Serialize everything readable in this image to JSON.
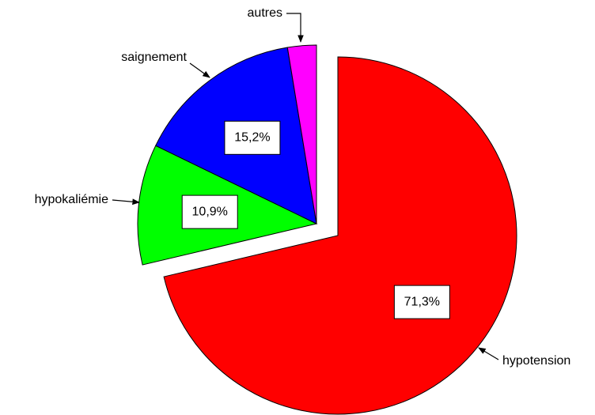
{
  "chart_data": {
    "type": "pie",
    "categories": [
      "hypotension",
      "hypokaliémie",
      "saignement",
      "autres"
    ],
    "values": [
      71.3,
      10.9,
      15.2,
      2.6
    ],
    "value_labels": [
      "71,3%",
      "10,9%",
      "15,2%",
      null
    ],
    "colors": [
      "#ff0000",
      "#00ff00",
      "#0000ff",
      "#ff00ff"
    ],
    "start_angle": 0,
    "direction": "clockwise"
  }
}
